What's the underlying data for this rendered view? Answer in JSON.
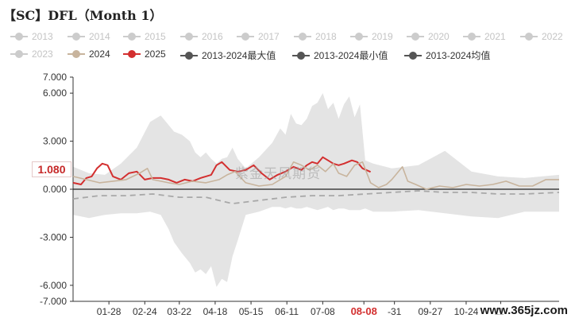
{
  "colors": {
    "range_fill": "#e4e4e4",
    "series_2024": "#c8b49d",
    "series_2025": "#d32f2f",
    "avg_line": "#a8a8a8",
    "inactive_legend": "#cccccc",
    "dark_legend": "#555555",
    "axis": "#333333"
  },
  "watermark": "紫金天风期货",
  "site_label": "www.365jz.com",
  "chart_data": {
    "type": "line",
    "title": "【SC】DFL（Month 1）",
    "xlabel": "",
    "ylabel": "",
    "ylim": [
      -7,
      7
    ],
    "y_ticks": [
      7,
      6,
      3,
      0,
      -3,
      -6,
      -7
    ],
    "y_tick_labels": [
      "7.000",
      "6.000",
      "3.000",
      "0.000",
      "-3.000",
      "-6.000",
      "-7.000"
    ],
    "x_tick_labels": [
      "01-28",
      "02-24",
      "03-22",
      "04-18",
      "05-15",
      "06-11",
      "07-08",
      "08-08",
      "-31",
      "09-27",
      "10-24",
      "11-"
    ],
    "x_tick_days": [
      27,
      54,
      80,
      107,
      134,
      161,
      188,
      219,
      242,
      269,
      296,
      322
    ],
    "x_highlight_label": "08-08",
    "current_value_label": "1.080",
    "legend": [
      {
        "name": "2013",
        "active": false,
        "style": "circle-line"
      },
      {
        "name": "2014",
        "active": false,
        "style": "circle-line"
      },
      {
        "name": "2015",
        "active": false,
        "style": "circle-line"
      },
      {
        "name": "2016",
        "active": false,
        "style": "circle-line"
      },
      {
        "name": "2017",
        "active": false,
        "style": "circle-line"
      },
      {
        "name": "2018",
        "active": false,
        "style": "circle-line"
      },
      {
        "name": "2019",
        "active": false,
        "style": "circle-line"
      },
      {
        "name": "2020",
        "active": false,
        "style": "circle-line"
      },
      {
        "name": "2021",
        "active": false,
        "style": "circle-line"
      },
      {
        "name": "2022",
        "active": false,
        "style": "circle-line"
      },
      {
        "name": "2023",
        "active": false,
        "style": "circle-line"
      },
      {
        "name": "2024",
        "active": true,
        "style": "circle-line",
        "color": "#c8b49d"
      },
      {
        "name": "2025",
        "active": true,
        "style": "circle-line",
        "color": "#d32f2f"
      },
      {
        "name": "2013-2024最大值",
        "active": true,
        "style": "circle-line",
        "color": "#555555"
      },
      {
        "name": "2013-2024最小值",
        "active": true,
        "style": "circle-line",
        "color": "#555555"
      },
      {
        "name": "2013-2024均值",
        "active": true,
        "style": "circle-line",
        "color": "#555555"
      }
    ],
    "x_range_days": [
      0,
      366
    ],
    "range_band": {
      "x": [
        0,
        12,
        24,
        36,
        48,
        58,
        66,
        72,
        76,
        82,
        88,
        92,
        96,
        100,
        104,
        108,
        112,
        116,
        120,
        124,
        130,
        140,
        150,
        156,
        160,
        164,
        168,
        172,
        176,
        180,
        184,
        188,
        192,
        196,
        200,
        204,
        208,
        212,
        216,
        220,
        226,
        240,
        260,
        280,
        300,
        320,
        340,
        366
      ],
      "max": [
        1.4,
        1.0,
        0.9,
        1.6,
        2.6,
        4.2,
        4.6,
        4.0,
        3.6,
        3.4,
        3.0,
        2.3,
        2.0,
        2.3,
        1.9,
        1.6,
        1.9,
        2.0,
        2.6,
        1.9,
        1.3,
        2.0,
        2.9,
        3.8,
        3.4,
        4.7,
        4.1,
        4.0,
        4.4,
        5.2,
        5.4,
        6.0,
        5.0,
        5.4,
        4.4,
        5.3,
        5.8,
        4.5,
        5.3,
        1.8,
        1.6,
        1.3,
        1.5,
        2.4,
        1.1,
        0.8,
        0.7,
        0.9
      ],
      "min": [
        -1.6,
        -1.8,
        -1.6,
        -1.5,
        -1.5,
        -1.4,
        -1.6,
        -2.5,
        -3.3,
        -4.0,
        -4.6,
        -5.2,
        -5.0,
        -5.3,
        -4.8,
        -6.1,
        -5.6,
        -5.8,
        -4.2,
        -3.2,
        -1.6,
        -1.4,
        -1.1,
        -1.1,
        -1.2,
        -1.1,
        -1.2,
        -1.2,
        -1.1,
        -1.2,
        -1.3,
        -1.2,
        -1.1,
        -1.3,
        -1.2,
        -1.2,
        -1.3,
        -1.3,
        -1.3,
        -1.2,
        -1.4,
        -1.4,
        -1.3,
        -1.5,
        -1.7,
        -1.8,
        -1.4,
        -1.4
      ]
    },
    "series": [
      {
        "name": "2025",
        "x": [
          0,
          6,
          10,
          14,
          18,
          22,
          26,
          30,
          36,
          42,
          48,
          54,
          60,
          66,
          72,
          78,
          84,
          90,
          96,
          100,
          104,
          108,
          112,
          118,
          124,
          130,
          136,
          142,
          148,
          154,
          160,
          166,
          172,
          176,
          180,
          184,
          188,
          192,
          196,
          200,
          204,
          210,
          214,
          218,
          224
        ],
        "values": [
          0.4,
          0.3,
          0.7,
          0.8,
          1.3,
          1.6,
          1.5,
          0.8,
          0.6,
          1.0,
          1.1,
          0.6,
          0.7,
          0.7,
          0.6,
          0.4,
          0.6,
          0.5,
          0.7,
          0.8,
          0.9,
          1.5,
          1.7,
          1.2,
          1.1,
          1.2,
          1.5,
          1.0,
          0.6,
          0.9,
          1.1,
          1.4,
          1.2,
          1.5,
          1.7,
          1.6,
          2.0,
          1.8,
          1.6,
          1.5,
          1.6,
          1.8,
          1.7,
          1.3,
          1.08
        ]
      },
      {
        "name": "2024",
        "x": [
          0,
          10,
          20,
          30,
          40,
          50,
          56,
          60,
          66,
          72,
          80,
          90,
          100,
          110,
          116,
          122,
          130,
          140,
          150,
          160,
          166,
          172,
          178,
          184,
          190,
          196,
          200,
          206,
          212,
          218,
          224,
          230,
          236,
          240,
          244,
          248,
          252,
          258,
          266,
          276,
          286,
          296,
          306,
          316,
          326,
          336,
          346,
          356,
          366
        ],
        "values": [
          0.8,
          0.6,
          0.4,
          0.5,
          0.6,
          1.0,
          1.3,
          0.6,
          0.5,
          0.4,
          0.3,
          0.5,
          0.4,
          0.6,
          0.9,
          1.1,
          0.4,
          0.2,
          0.3,
          0.8,
          1.7,
          1.5,
          1.2,
          1.5,
          1.1,
          1.6,
          1.0,
          0.8,
          1.5,
          1.7,
          0.4,
          0.1,
          0.3,
          0.6,
          1.0,
          1.4,
          0.5,
          0.3,
          0.0,
          0.2,
          0.1,
          0.3,
          0.2,
          0.3,
          0.5,
          0.2,
          0.2,
          0.6,
          0.6
        ]
      },
      {
        "name": "2013-2024均值",
        "x": [
          0,
          20,
          40,
          60,
          80,
          100,
          120,
          140,
          160,
          180,
          200,
          220,
          240,
          260,
          280,
          300,
          320,
          340,
          366
        ],
        "values": [
          -0.6,
          -0.4,
          -0.4,
          -0.3,
          -0.5,
          -0.5,
          -0.9,
          -0.7,
          -0.5,
          -0.4,
          -0.4,
          -0.3,
          -0.2,
          -0.1,
          -0.2,
          -0.2,
          -0.3,
          -0.3,
          -0.2
        ]
      }
    ]
  }
}
